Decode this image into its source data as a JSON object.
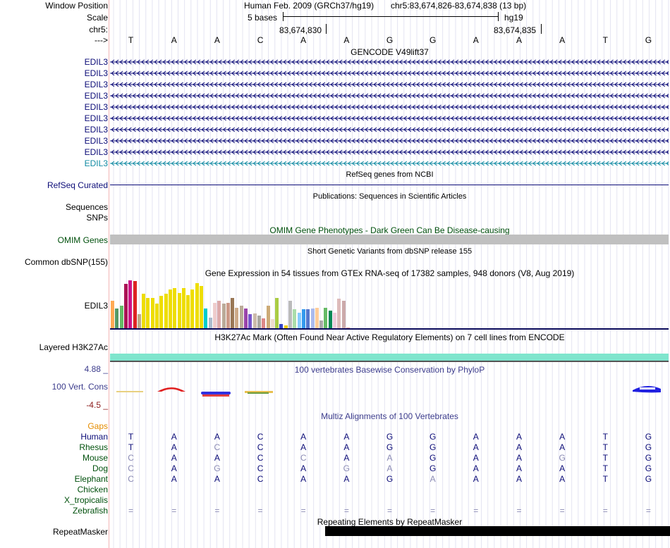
{
  "header": {
    "window_position": "Window Position",
    "scale": "Scale",
    "chrom": "chr5:",
    "arrow": "--->",
    "assembly": "Human Feb. 2009 (GRCh37/hg19)",
    "position": "chr5:83,674,826-83,674,838 (13 bp)",
    "scale_bases": "5 bases",
    "scale_db": "hg19",
    "coord_left": "83,674,830",
    "coord_right": "83,674,835"
  },
  "sequence": [
    "T",
    "A",
    "A",
    "C",
    "A",
    "A",
    "G",
    "G",
    "A",
    "A",
    "A",
    "T",
    "G"
  ],
  "gencode": {
    "title": "GENCODE V49lift37",
    "genes": [
      "EDIL3",
      "EDIL3",
      "EDIL3",
      "EDIL3",
      "EDIL3",
      "EDIL3",
      "EDIL3",
      "EDIL3",
      "EDIL3",
      "EDIL3"
    ]
  },
  "refseq": {
    "title": "RefSeq genes from NCBI",
    "label": "RefSeq Curated"
  },
  "publications": {
    "title": "Publications: Sequences in Scientific Articles",
    "label1": "Sequences",
    "label2": "SNPs"
  },
  "omim": {
    "title": "OMIM Gene Phenotypes - Dark Green Can Be Disease-causing",
    "label": "OMIM Genes"
  },
  "dbsnp": {
    "title": "Short Genetic Variants from dbSNP release 155",
    "label": "Common dbSNP(155)"
  },
  "gtex": {
    "title": "Gene Expression in 54 tissues from GTEx RNA-seq of 17382 samples, 948 donors (V8, Aug 2019)",
    "label": "EDIL3",
    "values": [
      0.55,
      0.4,
      0.45,
      0.9,
      0.97,
      0.95,
      0.28,
      0.7,
      0.62,
      0.62,
      0.5,
      0.65,
      0.7,
      0.78,
      0.82,
      0.72,
      0.82,
      0.67,
      0.78,
      0.92,
      0.85,
      0.4,
      0.22,
      0.52,
      0.55,
      0.5,
      0.52,
      0.62,
      0.42,
      0.45,
      0.4,
      0.28,
      0.3,
      0.25,
      0.2,
      0.45,
      0.18,
      0.62,
      0.08,
      0.05,
      0.55,
      0.38,
      0.32,
      0.38,
      0.38,
      0.4,
      0.42,
      0.15,
      0.42,
      0.35,
      0.32,
      0.6,
      0.55,
      0.02
    ],
    "colors": [
      "#ffaa55",
      "#559966",
      "#66bb66",
      "#aa1155",
      "#cc1188",
      "#dd2222",
      "#bbaa88",
      "#eedd00",
      "#eedd00",
      "#eedd00",
      "#eedd00",
      "#eedd00",
      "#eedd00",
      "#eedd00",
      "#eedd00",
      "#eedd00",
      "#eedd00",
      "#eedd00",
      "#eedd00",
      "#eedd00",
      "#eedd00",
      "#00cccc",
      "#aabbcc",
      "#eecccc",
      "#ddaaaa",
      "#bbaa99",
      "#cc9988",
      "#997755",
      "#ccaa88",
      "#bbaa99",
      "#9944aa",
      "#7755cc",
      "#ccbbaa",
      "#aaa8a0",
      "#dd8888",
      "#ccaa77",
      "#eeddcc",
      "#aacc44",
      "#3344cc",
      "#eecc00",
      "#bbbbbb",
      "#aaddaa",
      "#88ccff",
      "#3399ee",
      "#5577cc",
      "#aabbee",
      "#ffcc99",
      "#aaaaaa",
      "#66bb66",
      "#008855",
      "#eeccdd",
      "#ddbbbb",
      "#ccaaaa",
      "#ee9999"
    ]
  },
  "h3k27ac": {
    "title": "H3K27Ac Mark (Often Found Near Active Regulatory Elements) on 7 cell lines from ENCODE",
    "label": "Layered H3K27Ac"
  },
  "conservation": {
    "title": "100 vertebrates Basewise Conservation by PhyloP",
    "label": "100 Vert. Cons",
    "ymax": "4.88 _",
    "ymin": "-4.5 _"
  },
  "multiz": {
    "title": "Multiz Alignments of 100 Vertebrates",
    "gaps_label": "Gaps",
    "species": [
      {
        "name": "Human",
        "bases": [
          "T",
          "A",
          "A",
          "C",
          "A",
          "A",
          "G",
          "G",
          "A",
          "A",
          "A",
          "T",
          "G"
        ],
        "dim": []
      },
      {
        "name": "Rhesus",
        "bases": [
          "T",
          "A",
          "C",
          "C",
          "A",
          "A",
          "G",
          "G",
          "A",
          "A",
          "A",
          "T",
          "G"
        ],
        "dim": [
          2
        ]
      },
      {
        "name": "Mouse",
        "bases": [
          "C",
          "A",
          "A",
          "C",
          "C",
          "A",
          "A",
          "G",
          "A",
          "A",
          "G",
          "T",
          "G"
        ],
        "dim": [
          0,
          4,
          6,
          10
        ]
      },
      {
        "name": "Dog",
        "bases": [
          "C",
          "A",
          "G",
          "C",
          "A",
          "G",
          "A",
          "G",
          "A",
          "A",
          "A",
          "T",
          "G"
        ],
        "dim": [
          0,
          2,
          5,
          6
        ]
      },
      {
        "name": "Elephant",
        "bases": [
          "C",
          "A",
          "A",
          "C",
          "A",
          "A",
          "G",
          "A",
          "A",
          "A",
          "A",
          "T",
          "G"
        ],
        "dim": [
          0,
          7
        ]
      },
      {
        "name": "Chicken",
        "bases": [],
        "dim": []
      },
      {
        "name": "X_tropicalis",
        "bases": [],
        "dim": []
      },
      {
        "name": "Zebrafish",
        "bases": [
          "=",
          "=",
          "=",
          "=",
          "=",
          "=",
          "=",
          "=",
          "=",
          "=",
          "=",
          "=",
          "="
        ],
        "dim": [
          0,
          1,
          2,
          3,
          4,
          5,
          6,
          7,
          8,
          9,
          10,
          11,
          12
        ]
      }
    ]
  },
  "repeatmasker": {
    "title": "Repeating Elements by RepeatMasker",
    "label": "RepeatMasker"
  },
  "colors": {
    "gene_blue": "#0c0c78",
    "gene_teal": "#128ba3",
    "omim_green": "#00500c",
    "gtex_line": "#0a0a5a",
    "h3k27ac_fill": "#7fe5cd",
    "cons_blue": "#3c3c8c",
    "cons_red": "#8b1a1a",
    "gaps_orange": "#e58c00"
  }
}
